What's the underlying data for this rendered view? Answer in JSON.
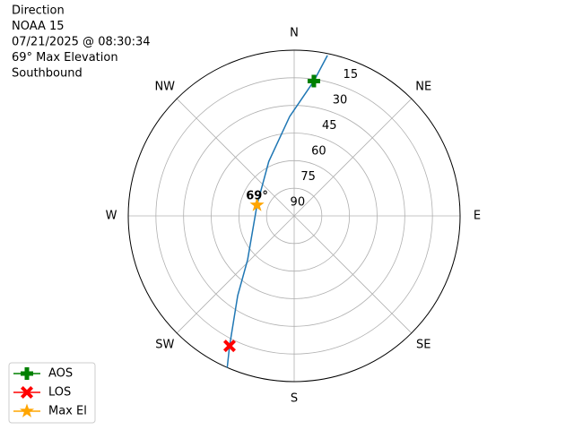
{
  "chart_data": {
    "type": "polar",
    "title_lines": [
      "Direction",
      "NOAA 15",
      "07/21/2025 @ 08:30:34",
      "69° Max Elevation",
      "Southbound"
    ],
    "rlim": [
      90,
      0
    ],
    "rticks": [
      90,
      75,
      60,
      45,
      30,
      15
    ],
    "theta_ticks": [
      {
        "value": 0,
        "label": "N"
      },
      {
        "value": 45,
        "label": "NE"
      },
      {
        "value": 90,
        "label": "E"
      },
      {
        "value": 135,
        "label": "SE"
      },
      {
        "value": 180,
        "label": "S"
      },
      {
        "value": 225,
        "label": "SW"
      },
      {
        "value": 270,
        "label": "W"
      },
      {
        "value": 315,
        "label": "NW"
      }
    ],
    "grid": true,
    "track": {
      "color": "#1f77b4",
      "azimuth": [
        11.7,
        8.3,
        357.4,
        335,
        286.3,
        226.7,
        215.3,
        206.4,
        203.8
      ],
      "elevation": [
        1,
        16,
        36,
        57.4,
        69,
        55.3,
        37,
        11.2,
        0
      ]
    },
    "markers": [
      {
        "name": "AOS",
        "color": "green",
        "shape": "plus",
        "azimuth": 8.3,
        "elevation": 16
      },
      {
        "name": "LOS",
        "color": "red",
        "shape": "x",
        "azimuth": 206.4,
        "elevation": 11.2
      },
      {
        "name": "Max El",
        "color": "orange",
        "shape": "star",
        "azimuth": 286.3,
        "elevation": 69
      }
    ],
    "annotation": {
      "text": "69°",
      "azimuth": 286.3,
      "elevation": 69
    },
    "legend": "lower left outside"
  }
}
